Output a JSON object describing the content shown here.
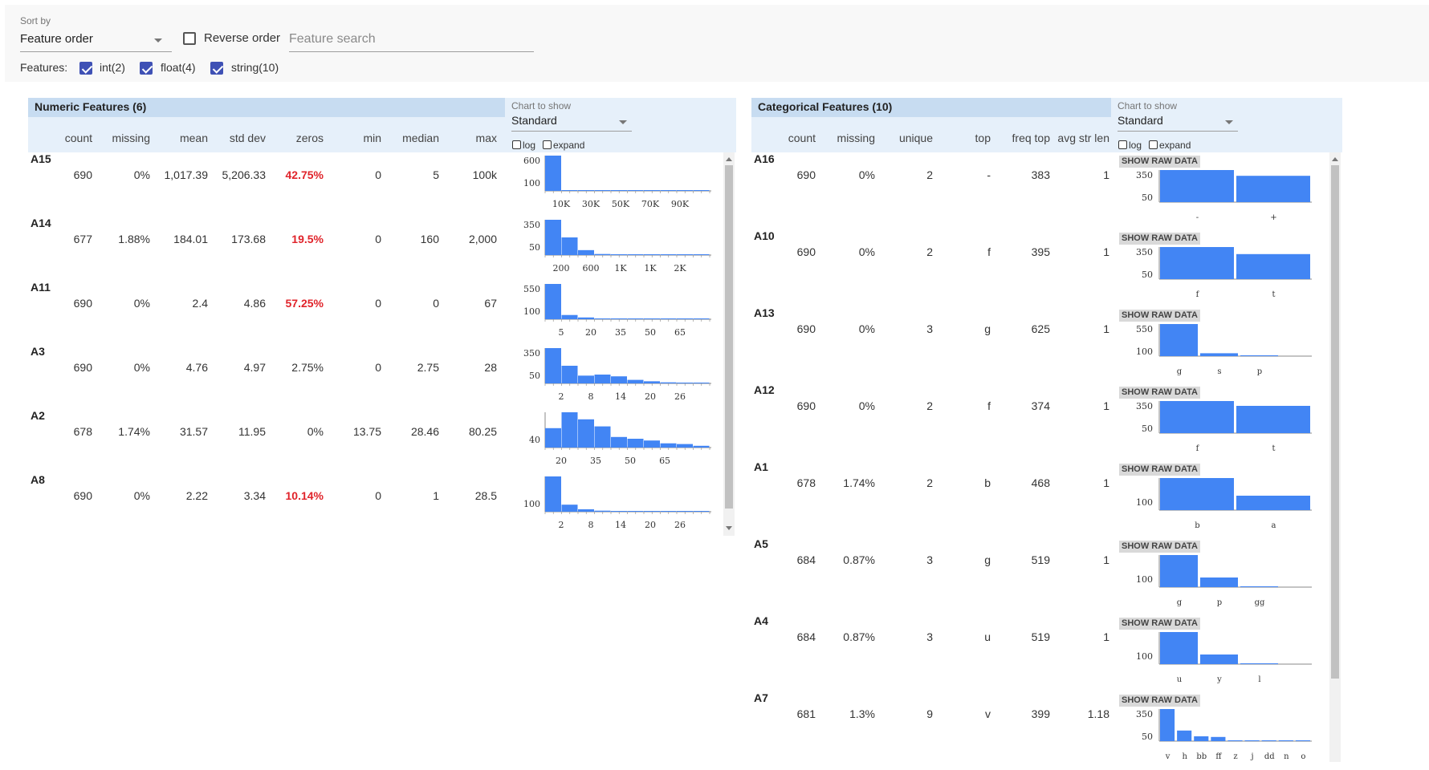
{
  "controls": {
    "sort_by_label": "Sort by",
    "sort_value": "Feature order",
    "reverse_label": "Reverse order",
    "search_placeholder": "Feature search",
    "features_label": "Features:",
    "feature_types": [
      {
        "label": "int(2)",
        "checked": true
      },
      {
        "label": "float(4)",
        "checked": true
      },
      {
        "label": "string(10)",
        "checked": true
      }
    ]
  },
  "numeric": {
    "title": "Numeric Features (6)",
    "chart_to_show_label": "Chart to show",
    "chart_to_show_value": "Standard",
    "log_label": "log",
    "expand_label": "expand",
    "columns": [
      "count",
      "missing",
      "mean",
      "std dev",
      "zeros",
      "min",
      "median",
      "max"
    ],
    "rows": [
      {
        "name": "A15",
        "count": "690",
        "missing": "0%",
        "mean": "1,017.39",
        "std": "5,206.33",
        "zeros": "42.75%",
        "zeros_red": true,
        "min": "0",
        "median": "5",
        "max": "100k"
      },
      {
        "name": "A14",
        "count": "677",
        "missing": "1.88%",
        "mean": "184.01",
        "std": "173.68",
        "zeros": "19.5%",
        "zeros_red": true,
        "min": "0",
        "median": "160",
        "max": "2,000"
      },
      {
        "name": "A11",
        "count": "690",
        "missing": "0%",
        "mean": "2.4",
        "std": "4.86",
        "zeros": "57.25%",
        "zeros_red": true,
        "min": "0",
        "median": "0",
        "max": "67"
      },
      {
        "name": "A3",
        "count": "690",
        "missing": "0%",
        "mean": "4.76",
        "std": "4.97",
        "zeros": "2.75%",
        "zeros_red": false,
        "min": "0",
        "median": "2.75",
        "max": "28"
      },
      {
        "name": "A2",
        "count": "678",
        "missing": "1.74%",
        "mean": "31.57",
        "std": "11.95",
        "zeros": "0%",
        "zeros_red": false,
        "min": "13.75",
        "median": "28.46",
        "max": "80.25"
      },
      {
        "name": "A8",
        "count": "690",
        "missing": "0%",
        "mean": "2.22",
        "std": "3.34",
        "zeros": "10.14%",
        "zeros_red": true,
        "min": "0",
        "median": "1",
        "max": "28.5"
      }
    ],
    "histograms": [
      {
        "y_ticks": [
          "600",
          "100"
        ],
        "x_ticks": [
          "10K",
          "30K",
          "50K",
          "70K",
          "90K"
        ],
        "bars": [
          1,
          0.01,
          0.01,
          0.005,
          0.005,
          0.005,
          0.005,
          0.005,
          0.005,
          0.005
        ]
      },
      {
        "y_ticks": [
          "350",
          "50"
        ],
        "x_ticks": [
          "200",
          "600",
          "1K",
          "1K",
          "2K"
        ],
        "bars": [
          1,
          0.5,
          0.14,
          0.03,
          0.02,
          0.01,
          0.01,
          0.01,
          0.01,
          0.01
        ]
      },
      {
        "y_ticks": [
          "550",
          "100"
        ],
        "x_ticks": [
          "5",
          "20",
          "35",
          "50",
          "65"
        ],
        "bars": [
          1,
          0.12,
          0.05,
          0.02,
          0.01,
          0.01,
          0.01,
          0.01,
          0.01,
          0.01
        ]
      },
      {
        "y_ticks": [
          "350",
          "50"
        ],
        "x_ticks": [
          "2",
          "8",
          "14",
          "20",
          "26"
        ],
        "bars": [
          1,
          0.5,
          0.22,
          0.25,
          0.2,
          0.1,
          0.06,
          0.03,
          0.02,
          0.02
        ]
      },
      {
        "y_ticks": [
          "40"
        ],
        "x_ticks": [
          "20",
          "35",
          "50",
          "65"
        ],
        "bars": [
          0.55,
          1,
          0.8,
          0.6,
          0.3,
          0.25,
          0.2,
          0.12,
          0.1,
          0.05
        ]
      },
      {
        "y_ticks": [
          "100"
        ],
        "x_ticks": [
          "2",
          "8",
          "14",
          "20",
          "26"
        ],
        "bars": [
          1,
          0.2,
          0.07,
          0.03,
          0.02,
          0.01,
          0.01,
          0.01,
          0.01,
          0.01
        ]
      }
    ]
  },
  "categorical": {
    "title": "Categorical Features (10)",
    "chart_to_show_label": "Chart to show",
    "chart_to_show_value": "Standard",
    "log_label": "log",
    "expand_label": "expand",
    "show_raw_label": "SHOW RAW DATA",
    "columns": [
      "count",
      "missing",
      "unique",
      "top",
      "freq top",
      "avg str len"
    ],
    "rows": [
      {
        "name": "A16",
        "count": "690",
        "missing": "0%",
        "unique": "2",
        "top": "-",
        "freq": "383",
        "avg": "1",
        "chart": {
          "y_ticks": [
            "350",
            "50"
          ],
          "cats": [
            "-",
            "+"
          ],
          "bars": [
            1,
            0.82
          ]
        }
      },
      {
        "name": "A10",
        "count": "690",
        "missing": "0%",
        "unique": "2",
        "top": "f",
        "freq": "395",
        "avg": "1",
        "chart": {
          "y_ticks": [
            "350",
            "50"
          ],
          "cats": [
            "f",
            "t"
          ],
          "bars": [
            1,
            0.78
          ]
        }
      },
      {
        "name": "A13",
        "count": "690",
        "missing": "0%",
        "unique": "3",
        "top": "g",
        "freq": "625",
        "avg": "1",
        "chart": {
          "y_ticks": [
            "550",
            "100"
          ],
          "cats": [
            "g",
            "s",
            "p"
          ],
          "bars": [
            1,
            0.09,
            0.02
          ]
        }
      },
      {
        "name": "A12",
        "count": "690",
        "missing": "0%",
        "unique": "2",
        "top": "f",
        "freq": "374",
        "avg": "1",
        "chart": {
          "y_ticks": [
            "350",
            "50"
          ],
          "cats": [
            "f",
            "t"
          ],
          "bars": [
            1,
            0.85
          ]
        }
      },
      {
        "name": "A1",
        "count": "678",
        "missing": "1.74%",
        "unique": "2",
        "top": "b",
        "freq": "468",
        "avg": "1",
        "chart": {
          "y_ticks": [
            "100"
          ],
          "cats": [
            "b",
            "a"
          ],
          "bars": [
            1,
            0.45
          ]
        }
      },
      {
        "name": "A5",
        "count": "684",
        "missing": "0.87%",
        "unique": "3",
        "top": "g",
        "freq": "519",
        "avg": "1",
        "chart": {
          "y_ticks": [
            "100"
          ],
          "cats": [
            "g",
            "p",
            "gg"
          ],
          "bars": [
            1,
            0.3,
            0.01
          ]
        }
      },
      {
        "name": "A4",
        "count": "684",
        "missing": "0.87%",
        "unique": "3",
        "top": "u",
        "freq": "519",
        "avg": "1",
        "chart": {
          "y_ticks": [
            "100"
          ],
          "cats": [
            "u",
            "y",
            "l"
          ],
          "bars": [
            1,
            0.3,
            0.01
          ]
        }
      },
      {
        "name": "A7",
        "count": "681",
        "missing": "1.3%",
        "unique": "9",
        "top": "v",
        "freq": "399",
        "avg": "1.18",
        "chart": {
          "y_ticks": [
            "350",
            "50"
          ],
          "cats": [
            "v",
            "h",
            "bb",
            "ff",
            "z",
            "j",
            "dd",
            "n",
            "o"
          ],
          "bars": [
            1,
            0.33,
            0.15,
            0.13,
            0.02,
            0.02,
            0.01,
            0.01,
            0.01
          ]
        }
      }
    ]
  },
  "colors": {
    "bar": "#4285f4",
    "red": "#e0232a",
    "header": "#c7dcf1"
  }
}
